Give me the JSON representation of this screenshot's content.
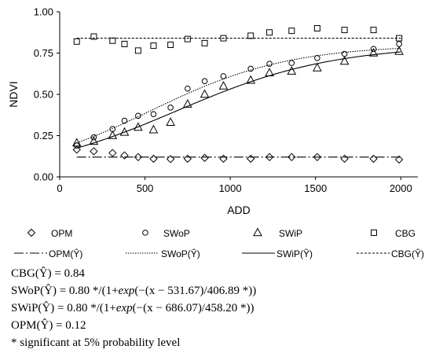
{
  "chart_data": {
    "type": "scatter",
    "xlabel": "ADD",
    "ylabel": "NDVI",
    "xlim": [
      0,
      2100
    ],
    "ylim": [
      0.0,
      1.0
    ],
    "x_ticks": [
      "0",
      "500",
      "1000",
      "1500",
      "2000"
    ],
    "y_ticks": [
      "0.00",
      "0.25",
      "0.50",
      "0.75",
      "1.00"
    ],
    "grid": false,
    "legend_position": "bottom",
    "series": [
      {
        "name": "OPM",
        "marker": "diamond",
        "x": [
          100,
          200,
          310,
          380,
          460,
          550,
          650,
          750,
          850,
          960,
          1120,
          1230,
          1360,
          1510,
          1670,
          1840,
          1990
        ],
        "y": [
          0.165,
          0.155,
          0.145,
          0.13,
          0.12,
          0.11,
          0.108,
          0.11,
          0.115,
          0.11,
          0.11,
          0.12,
          0.12,
          0.12,
          0.11,
          0.11,
          0.105
        ]
      },
      {
        "name": "SWoP",
        "marker": "circle",
        "x": [
          100,
          200,
          310,
          380,
          460,
          550,
          650,
          750,
          850,
          960,
          1120,
          1230,
          1360,
          1510,
          1670,
          1840,
          1990
        ],
        "y": [
          0.19,
          0.24,
          0.29,
          0.34,
          0.37,
          0.38,
          0.42,
          0.535,
          0.58,
          0.61,
          0.655,
          0.685,
          0.69,
          0.72,
          0.745,
          0.775,
          0.805
        ]
      },
      {
        "name": "SWiP",
        "marker": "triangle",
        "x": [
          100,
          200,
          310,
          380,
          460,
          550,
          650,
          750,
          850,
          960,
          1120,
          1230,
          1360,
          1510,
          1670,
          1840,
          1990
        ],
        "y": [
          0.205,
          0.215,
          0.25,
          0.27,
          0.3,
          0.285,
          0.33,
          0.44,
          0.5,
          0.55,
          0.585,
          0.63,
          0.64,
          0.66,
          0.7,
          0.75,
          0.76
        ]
      },
      {
        "name": "CBG",
        "marker": "square",
        "x": [
          100,
          200,
          310,
          380,
          460,
          550,
          650,
          750,
          850,
          960,
          1120,
          1230,
          1360,
          1510,
          1670,
          1840,
          1990
        ],
        "y": [
          0.82,
          0.85,
          0.825,
          0.805,
          0.765,
          0.795,
          0.8,
          0.835,
          0.81,
          0.84,
          0.855,
          0.875,
          0.885,
          0.9,
          0.89,
          0.89,
          0.84
        ]
      }
    ],
    "fits": [
      {
        "name": "OPM(Ŷ)",
        "model": "constant",
        "value": 0.12,
        "x_range": [
          100,
          2000
        ]
      },
      {
        "name": "SWoP(Ŷ)",
        "model": "logistic",
        "a": 0.8,
        "x0": 531.67,
        "b": 406.89,
        "x_range": [
          100,
          2000
        ]
      },
      {
        "name": "SWiP(Ŷ)",
        "model": "logistic",
        "a": 0.8,
        "x0": 686.07,
        "b": 458.2,
        "x_range": [
          100,
          2000
        ]
      },
      {
        "name": "CBG(Ŷ)",
        "model": "constant",
        "value": 0.84,
        "x_range": [
          100,
          2000
        ]
      }
    ]
  },
  "equations": {
    "cbg": "CBG(Ŷ) = 0.84",
    "swop_pre": "SWoP(Ŷ) = 0.80 */(1+",
    "swiP_pre": "SWiP(Ŷ) = 0.80 */(1+",
    "exp": "exp",
    "swop_post": "(−(x − 531.67)/406.89 *))",
    "swip_post": "(−(x − 686.07)/458.20 *))",
    "opm": "OPM(Ŷ) = 0.12",
    "note": "* significant at 5% probability level"
  }
}
